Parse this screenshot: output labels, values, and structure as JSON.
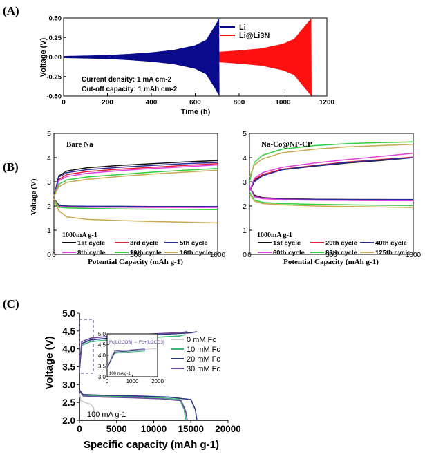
{
  "figure": {
    "panel_labels": [
      "(A)",
      "(B)",
      "(C)"
    ]
  },
  "chart_data": [
    {
      "id": "A",
      "type": "line",
      "xlabel": "Time (h)",
      "ylabel": "Voltage (V)",
      "xlim": [
        0,
        1200
      ],
      "ylim": [
        -0.5,
        0.5
      ],
      "xticks": [
        0,
        200,
        400,
        600,
        800,
        1000,
        1200
      ],
      "yticks": [
        -0.5,
        -0.25,
        0.0,
        0.25,
        0.5
      ],
      "ytick_labels": [
        "-0.50",
        "-0.25",
        "0.00",
        "0.25",
        "0.50"
      ],
      "legend": [
        "Li",
        "Li@Li3N"
      ],
      "annotations": [
        "Current density: 1 mA cm-2",
        "Cut-off capacity: 1 mAh cm-2"
      ],
      "series": [
        {
          "name": "Li",
          "color": "#0a0a8c",
          "envelope": {
            "t": [
              0,
              100,
              200,
              300,
              400,
              500,
              600,
              650,
              690,
              710
            ],
            "v": [
              0.012,
              0.018,
              0.025,
              0.04,
              0.06,
              0.09,
              0.15,
              0.22,
              0.4,
              0.5
            ]
          }
        },
        {
          "name": "Li@Li3N",
          "color": "#ff1010",
          "envelope": {
            "t": [
              0,
              100,
              200,
              400,
              600,
              700,
              800,
              900,
              1000,
              1050,
              1100,
              1130
            ],
            "v": [
              0.01,
              0.015,
              0.02,
              0.035,
              0.05,
              0.065,
              0.085,
              0.11,
              0.17,
              0.23,
              0.4,
              0.5
            ]
          }
        }
      ]
    },
    {
      "id": "B-left",
      "type": "line",
      "title": "Bare Na",
      "xlabel": "Potential Capacity (mAh g-1)",
      "xlim": [
        0,
        1000
      ],
      "ylim": [
        0,
        5
      ],
      "yticks": [
        0,
        1,
        2,
        3,
        4,
        5
      ],
      "xtick_labels": [
        "0",
        "500",
        "1000"
      ],
      "xtick_values": [
        0,
        500,
        1000
      ],
      "ylabel": "Voltage (V)",
      "rate_label": "1000mA g-1",
      "series": [
        {
          "name": "1st cycle",
          "color": "#111111",
          "charge": {
            "x": [
              0,
              30,
              80,
              200,
              400,
              600,
              800,
              1000
            ],
            "y": [
              2.4,
              3.25,
              3.45,
              3.58,
              3.68,
              3.75,
              3.82,
              3.88
            ]
          },
          "discharge": {
            "x": [
              0,
              30,
              80,
              200,
              400,
              600,
              800,
              1000
            ],
            "y": [
              2.3,
              2.05,
              2.0,
              1.98,
              1.97,
              1.96,
              1.96,
              1.95
            ]
          }
        },
        {
          "name": "3rd cycle",
          "color": "#e0203c",
          "charge": {
            "x": [
              0,
              30,
              80,
              200,
              400,
              600,
              800,
              1000
            ],
            "y": [
              2.4,
              3.1,
              3.3,
              3.42,
              3.52,
              3.6,
              3.68,
              3.75
            ]
          },
          "discharge": {
            "x": [
              0,
              30,
              80,
              200,
              400,
              600,
              800,
              1000
            ],
            "y": [
              2.3,
              2.0,
              1.98,
              1.97,
              1.96,
              1.96,
              1.95,
              1.95
            ]
          }
        },
        {
          "name": "5th cycle",
          "color": "#2a2a9a",
          "charge": {
            "x": [
              0,
              30,
              80,
              200,
              400,
              600,
              800,
              1000
            ],
            "y": [
              2.4,
              3.2,
              3.38,
              3.5,
              3.6,
              3.68,
              3.75,
              3.8
            ]
          },
          "discharge": {
            "x": [
              0,
              30,
              80,
              200,
              400,
              600,
              800,
              1000
            ],
            "y": [
              2.3,
              2.02,
              2.0,
              1.99,
              1.99,
              1.98,
              1.98,
              1.98
            ]
          }
        },
        {
          "name": "8th cycle",
          "color": "#e040e0",
          "charge": {
            "x": [
              0,
              30,
              80,
              200,
              400,
              600,
              800,
              1000
            ],
            "y": [
              2.4,
              3.05,
              3.22,
              3.35,
              3.46,
              3.55,
              3.62,
              3.7
            ]
          },
          "discharge": {
            "x": [
              0,
              30,
              80,
              200,
              400,
              600,
              800,
              1000
            ],
            "y": [
              2.3,
              1.98,
              1.96,
              1.95,
              1.95,
              1.94,
              1.94,
              1.94
            ]
          }
        },
        {
          "name": "10th cycle",
          "color": "#30d040",
          "charge": {
            "x": [
              0,
              30,
              80,
              200,
              400,
              600,
              800,
              1000
            ],
            "y": [
              2.4,
              2.9,
              3.08,
              3.2,
              3.3,
              3.4,
              3.48,
              3.55
            ]
          },
          "discharge": {
            "x": [
              0,
              30,
              80,
              200,
              400,
              600,
              800,
              1000
            ],
            "y": [
              2.3,
              1.95,
              1.92,
              1.9,
              1.88,
              1.87,
              1.86,
              1.85
            ]
          }
        },
        {
          "name": "16th cycle",
          "color": "#c8a850",
          "charge": {
            "x": [
              0,
              30,
              80,
              200,
              400,
              600,
              800,
              1000
            ],
            "y": [
              2.4,
              2.8,
              2.98,
              3.1,
              3.22,
              3.32,
              3.4,
              3.48
            ]
          },
          "discharge": {
            "x": [
              0,
              30,
              80,
              200,
              400,
              600,
              800,
              1000
            ],
            "y": [
              2.3,
              1.8,
              1.55,
              1.45,
              1.4,
              1.36,
              1.33,
              1.3
            ]
          }
        }
      ]
    },
    {
      "id": "B-right",
      "type": "line",
      "title": "Na-Co@NP-CP",
      "xlabel": "Potential Capacity (mAh g-1)",
      "xlim": [
        0,
        1000
      ],
      "ylim": [
        0,
        5
      ],
      "yticks": [
        0,
        1,
        2,
        3,
        4,
        5
      ],
      "xtick_labels": [
        "0",
        "500",
        "1000"
      ],
      "xtick_values": [
        0,
        500,
        1000
      ],
      "rate_label": "1000mA g-1",
      "series": [
        {
          "name": "1st cycle",
          "color": "#111111",
          "charge": {
            "x": [
              0,
              30,
              80,
              200,
              400,
              600,
              800,
              1000
            ],
            "y": [
              2.6,
              3.05,
              3.3,
              3.5,
              3.65,
              3.78,
              3.88,
              4.0
            ]
          },
          "discharge": {
            "x": [
              0,
              30,
              80,
              200,
              400,
              600,
              800,
              1000
            ],
            "y": [
              2.8,
              2.45,
              2.35,
              2.3,
              2.28,
              2.27,
              2.26,
              2.26
            ]
          }
        },
        {
          "name": "20th cycle",
          "color": "#e0203c",
          "charge": {
            "x": [
              0,
              30,
              80,
              200,
              400,
              600,
              800,
              1000
            ],
            "y": [
              2.6,
              3.1,
              3.3,
              3.52,
              3.68,
              3.82,
              3.92,
              4.02
            ]
          },
          "discharge": {
            "x": [
              0,
              30,
              80,
              200,
              400,
              600,
              800,
              1000
            ],
            "y": [
              2.8,
              2.42,
              2.33,
              2.3,
              2.28,
              2.27,
              2.27,
              2.26
            ]
          }
        },
        {
          "name": "40th cycle",
          "color": "#2a2a9a",
          "charge": {
            "x": [
              0,
              30,
              80,
              200,
              400,
              600,
              800,
              1000
            ],
            "y": [
              2.6,
              3.0,
              3.25,
              3.5,
              3.66,
              3.8,
              3.9,
              4.0
            ]
          },
          "discharge": {
            "x": [
              0,
              30,
              80,
              200,
              400,
              600,
              800,
              1000
            ],
            "y": [
              2.8,
              2.4,
              2.32,
              2.29,
              2.28,
              2.27,
              2.27,
              2.27
            ]
          }
        },
        {
          "name": "60th cycle",
          "color": "#e040e0",
          "charge": {
            "x": [
              0,
              30,
              80,
              200,
              400,
              600,
              800,
              1000
            ],
            "y": [
              2.6,
              3.15,
              3.38,
              3.6,
              3.78,
              3.92,
              4.05,
              4.18
            ]
          },
          "discharge": {
            "x": [
              0,
              30,
              80,
              200,
              400,
              600,
              800,
              1000
            ],
            "y": [
              2.8,
              2.38,
              2.3,
              2.26,
              2.24,
              2.23,
              2.22,
              2.22
            ]
          }
        },
        {
          "name": "80th cycle",
          "color": "#30d040",
          "charge": {
            "x": [
              0,
              30,
              80,
              200,
              400,
              600,
              800,
              1000
            ],
            "y": [
              3.0,
              3.8,
              4.1,
              4.35,
              4.5,
              4.58,
              4.62,
              4.65
            ]
          },
          "discharge": {
            "x": [
              0,
              30,
              80,
              200,
              400,
              600,
              800,
              1000
            ],
            "y": [
              2.6,
              2.25,
              2.15,
              2.1,
              2.07,
              2.05,
              2.03,
              2.02
            ]
          }
        },
        {
          "name": "125th cycle",
          "color": "#c8a850",
          "charge": {
            "x": [
              0,
              30,
              80,
              200,
              400,
              600,
              800,
              1000
            ],
            "y": [
              3.2,
              3.7,
              3.95,
              4.2,
              4.35,
              4.45,
              4.5,
              4.55
            ]
          },
          "discharge": {
            "x": [
              0,
              30,
              80,
              200,
              400,
              600,
              800,
              1000
            ],
            "y": [
              2.5,
              2.2,
              2.1,
              2.05,
              2.0,
              1.98,
              1.96,
              1.94
            ]
          }
        }
      ]
    },
    {
      "id": "C",
      "type": "line",
      "xlabel": "Specific capacity (mAh g-1)",
      "ylabel": "Voltage (V)",
      "xlim": [
        0,
        20000
      ],
      "ylim": [
        2.0,
        5.0
      ],
      "xticks": [
        0,
        5000,
        10000,
        15000,
        20000
      ],
      "yticks": [
        2.0,
        2.5,
        3.0,
        3.5,
        4.0,
        4.5,
        5.0
      ],
      "ytick_labels": [
        "2.0",
        "2.5",
        "3.0",
        "3.5",
        "4.0",
        "4.5",
        "5.0"
      ],
      "rate_label": "100 mA g-1",
      "series": [
        {
          "name": "0 mM Fc",
          "color": "#c8c8c8",
          "discharge": {
            "x": [
              0,
              200,
              800,
              1500,
              1900,
              2000,
              2050
            ],
            "y": [
              2.75,
              2.55,
              2.5,
              2.45,
              2.35,
              2.15,
              2.0
            ]
          },
          "charge": {
            "x": [
              0,
              200,
              600,
              1200,
              1800,
              2050
            ],
            "y": [
              3.4,
              4.05,
              4.15,
              4.25,
              4.3,
              4.32
            ]
          }
        },
        {
          "name": "10 mM Fc",
          "color": "#3cb878",
          "discharge": {
            "x": [
              0,
              500,
              3000,
              7000,
              11000,
              13500,
              14100,
              14300
            ],
            "y": [
              2.85,
              2.7,
              2.68,
              2.66,
              2.63,
              2.58,
              2.3,
              2.0
            ]
          },
          "charge": {
            "x": [
              0,
              300,
              1500,
              4000,
              8000,
              11000,
              13500,
              14300
            ],
            "y": [
              3.4,
              4.1,
              4.2,
              4.25,
              4.3,
              4.33,
              4.36,
              4.4
            ]
          }
        },
        {
          "name": "20 mM Fc",
          "color": "#2c3a84",
          "discharge": {
            "x": [
              0,
              500,
              3000,
              8000,
              12000,
              15000,
              15600,
              15800
            ],
            "y": [
              2.85,
              2.72,
              2.7,
              2.68,
              2.65,
              2.58,
              2.3,
              2.0
            ]
          },
          "charge": {
            "x": [
              0,
              300,
              1500,
              5000,
              9000,
              12500,
              15000,
              15800
            ],
            "y": [
              3.4,
              4.15,
              4.25,
              4.32,
              4.38,
              4.42,
              4.45,
              4.48
            ]
          }
        },
        {
          "name": "30 mM Fc",
          "color": "#6a4a9a",
          "discharge": {
            "x": [
              0,
              500,
              3000,
              7000,
              11000,
              13700,
              14300,
              14500
            ],
            "y": [
              2.82,
              2.68,
              2.65,
              2.63,
              2.6,
              2.55,
              2.25,
              2.0
            ]
          },
          "charge": {
            "x": [
              0,
              300,
              1500,
              4000,
              8000,
              11000,
              13500,
              14500
            ],
            "y": [
              3.4,
              4.2,
              4.3,
              4.35,
              4.4,
              4.43,
              4.45,
              4.48
            ]
          }
        }
      ],
      "inset": {
        "label": "Fc[Li2CO3] → Fc+[Li2CO3]",
        "rate_label": "100 mA g-1",
        "xlim": [
          0,
          2000
        ],
        "ylim": [
          3.0,
          5.0
        ],
        "xticks": [
          0,
          1000,
          2000
        ],
        "yticks": [
          3.0,
          3.5,
          4.0,
          4.5,
          5.0
        ],
        "ytick_labels": [
          "3.0",
          "3.5",
          "4.0",
          "4.5",
          "5.0"
        ]
      }
    }
  ]
}
